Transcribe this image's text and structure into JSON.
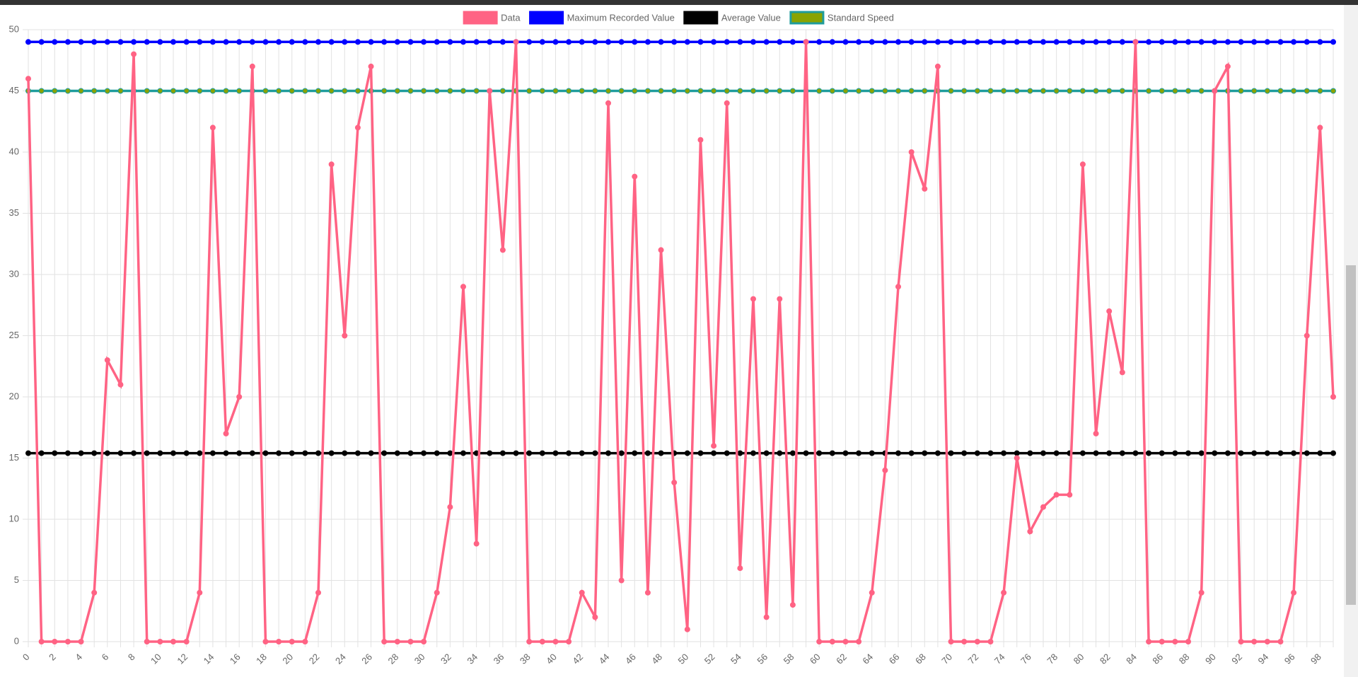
{
  "chart_data": {
    "type": "line",
    "categories": [
      0,
      null,
      2,
      null,
      4,
      null,
      6,
      null,
      8,
      null,
      10,
      null,
      12,
      null,
      14,
      null,
      16,
      null,
      18,
      null,
      20,
      null,
      22,
      null,
      24,
      null,
      26,
      null,
      28,
      null,
      30,
      null,
      32,
      null,
      34,
      null,
      36,
      null,
      38,
      null,
      40,
      null,
      42,
      null,
      44,
      null,
      46,
      null,
      48,
      null,
      50,
      null,
      52,
      null,
      54,
      null,
      56,
      null,
      58,
      null,
      60,
      null,
      62,
      null,
      64,
      null,
      66,
      null,
      68,
      null,
      70,
      null,
      72,
      null,
      74,
      null,
      76,
      null,
      78,
      null,
      80,
      null,
      82,
      null,
      84,
      null,
      86,
      null,
      88,
      null,
      90,
      null,
      92,
      null,
      94,
      null,
      96,
      null,
      98,
      null
    ],
    "ylim": [
      0,
      50
    ],
    "yticks": [
      0,
      5,
      10,
      15,
      20,
      25,
      30,
      35,
      40,
      45,
      50
    ],
    "grid": true,
    "legend": "top",
    "series": [
      {
        "name": "Data",
        "color": "#ff6384",
        "point_color": "#ff6384",
        "values": [
          46,
          0,
          0,
          0,
          0,
          4,
          23,
          21,
          48,
          0,
          0,
          0,
          0,
          4,
          42,
          17,
          20,
          47,
          0,
          0,
          0,
          0,
          4,
          39,
          25,
          42,
          47,
          0,
          0,
          0,
          0,
          4,
          11,
          29,
          8,
          45,
          32,
          49,
          0,
          0,
          0,
          0,
          4,
          2,
          44,
          5,
          38,
          4,
          32,
          13,
          1,
          41,
          16,
          44,
          6,
          28,
          2,
          28,
          3,
          49,
          0,
          0,
          0,
          0,
          4,
          14,
          29,
          40,
          37,
          47,
          0,
          0,
          0,
          0,
          4,
          15,
          9,
          11,
          12,
          12,
          39,
          17,
          27,
          22,
          49,
          0,
          0,
          0,
          0,
          4,
          45,
          47,
          0,
          0,
          0,
          0,
          4,
          25,
          42,
          20
        ]
      },
      {
        "name": "Maximum Recorded Value",
        "color": "#0000ff",
        "point_color": "#0000ff",
        "values": [
          49,
          49,
          49,
          49,
          49,
          49,
          49,
          49,
          49,
          49,
          49,
          49,
          49,
          49,
          49,
          49,
          49,
          49,
          49,
          49,
          49,
          49,
          49,
          49,
          49,
          49,
          49,
          49,
          49,
          49,
          49,
          49,
          49,
          49,
          49,
          49,
          49,
          49,
          49,
          49,
          49,
          49,
          49,
          49,
          49,
          49,
          49,
          49,
          49,
          49,
          49,
          49,
          49,
          49,
          49,
          49,
          49,
          49,
          49,
          49,
          49,
          49,
          49,
          49,
          49,
          49,
          49,
          49,
          49,
          49,
          49,
          49,
          49,
          49,
          49,
          49,
          49,
          49,
          49,
          49,
          49,
          49,
          49,
          49,
          49,
          49,
          49,
          49,
          49,
          49,
          49,
          49,
          49,
          49,
          49,
          49,
          49,
          49,
          49,
          49
        ]
      },
      {
        "name": "Average Value",
        "color": "#000000",
        "point_color": "#000000",
        "values": [
          15.4,
          15.4,
          15.4,
          15.4,
          15.4,
          15.4,
          15.4,
          15.4,
          15.4,
          15.4,
          15.4,
          15.4,
          15.4,
          15.4,
          15.4,
          15.4,
          15.4,
          15.4,
          15.4,
          15.4,
          15.4,
          15.4,
          15.4,
          15.4,
          15.4,
          15.4,
          15.4,
          15.4,
          15.4,
          15.4,
          15.4,
          15.4,
          15.4,
          15.4,
          15.4,
          15.4,
          15.4,
          15.4,
          15.4,
          15.4,
          15.4,
          15.4,
          15.4,
          15.4,
          15.4,
          15.4,
          15.4,
          15.4,
          15.4,
          15.4,
          15.4,
          15.4,
          15.4,
          15.4,
          15.4,
          15.4,
          15.4,
          15.4,
          15.4,
          15.4,
          15.4,
          15.4,
          15.4,
          15.4,
          15.4,
          15.4,
          15.4,
          15.4,
          15.4,
          15.4,
          15.4,
          15.4,
          15.4,
          15.4,
          15.4,
          15.4,
          15.4,
          15.4,
          15.4,
          15.4,
          15.4,
          15.4,
          15.4,
          15.4,
          15.4,
          15.4,
          15.4,
          15.4,
          15.4,
          15.4,
          15.4,
          15.4,
          15.4,
          15.4,
          15.4,
          15.4,
          15.4,
          15.4,
          15.4,
          15.4
        ]
      },
      {
        "name": "Standard Speed",
        "color": "#1f9c9c",
        "point_color": "#8aa300",
        "values": [
          45,
          45,
          45,
          45,
          45,
          45,
          45,
          45,
          45,
          45,
          45,
          45,
          45,
          45,
          45,
          45,
          45,
          45,
          45,
          45,
          45,
          45,
          45,
          45,
          45,
          45,
          45,
          45,
          45,
          45,
          45,
          45,
          45,
          45,
          45,
          45,
          45,
          45,
          45,
          45,
          45,
          45,
          45,
          45,
          45,
          45,
          45,
          45,
          45,
          45,
          45,
          45,
          45,
          45,
          45,
          45,
          45,
          45,
          45,
          45,
          45,
          45,
          45,
          45,
          45,
          45,
          45,
          45,
          45,
          45,
          45,
          45,
          45,
          45,
          45,
          45,
          45,
          45,
          45,
          45,
          45,
          45,
          45,
          45,
          45,
          45,
          45,
          45,
          45,
          45,
          45,
          45,
          45,
          45,
          45,
          45,
          45,
          45,
          45,
          45
        ]
      }
    ]
  }
}
